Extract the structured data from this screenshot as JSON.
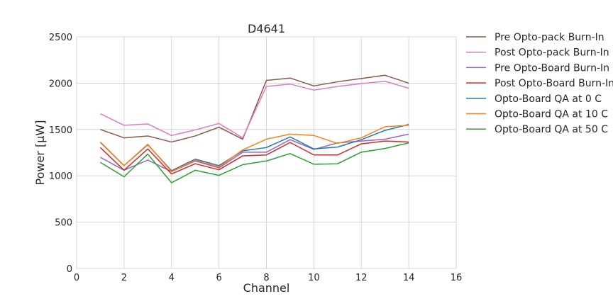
{
  "chart_data": {
    "type": "line",
    "title": "D4641",
    "xlabel": "Channel",
    "ylabel": "Power [μW]",
    "xlim": [
      0,
      16
    ],
    "ylim": [
      0,
      2500
    ],
    "xticks": [
      0,
      2,
      4,
      6,
      8,
      10,
      12,
      14,
      16
    ],
    "yticks": [
      0,
      500,
      1000,
      1500,
      2000,
      2500
    ],
    "grid": true,
    "legend_position": "right, outside plot",
    "x": [
      1,
      2,
      3,
      4,
      5,
      6,
      7,
      8,
      9,
      10,
      11,
      12,
      13,
      14
    ],
    "series": [
      {
        "name": "Pre Opto-pack Burn-In",
        "color": "#8c564b",
        "values": [
          1500,
          1410,
          1430,
          1365,
          1430,
          1525,
          1395,
          2030,
          2055,
          1970,
          2015,
          2050,
          2085,
          2000
        ]
      },
      {
        "name": "Post Opto-pack Burn-In",
        "color": "#e377c2",
        "values": [
          1670,
          1545,
          1560,
          1435,
          1495,
          1565,
          1410,
          1965,
          1990,
          1925,
          1965,
          1995,
          2020,
          1945
        ]
      },
      {
        "name": "Pre Opto-Board Burn-In",
        "color": "#9467bd",
        "values": [
          1200,
          1060,
          1170,
          1045,
          1160,
          1085,
          1255,
          1255,
          1390,
          1285,
          1355,
          1375,
          1395,
          1450
        ]
      },
      {
        "name": "Post Opto-Board Burn-In",
        "color": "#d62728",
        "values": [
          1305,
          1060,
          1290,
          1020,
          1130,
          1065,
          1215,
          1225,
          1360,
          1225,
          1225,
          1345,
          1375,
          1365
        ]
      },
      {
        "name": "Opto-Board QA at 0 C",
        "color": "#1f77b4",
        "values": [
          1360,
          1110,
          1335,
          1055,
          1180,
          1110,
          1270,
          1305,
          1420,
          1290,
          1310,
          1390,
          1490,
          1555
        ]
      },
      {
        "name": "Opto-Board QA at 10 C",
        "color": "#ff7f0e",
        "values": [
          1365,
          1110,
          1340,
          1045,
          1170,
          1095,
          1280,
          1395,
          1450,
          1435,
          1350,
          1410,
          1530,
          1545
        ]
      },
      {
        "name": "Opto-Board QA at 50 C",
        "color": "#2ca02c",
        "values": [
          1145,
          990,
          1235,
          925,
          1060,
          1005,
          1120,
          1160,
          1240,
          1125,
          1130,
          1255,
          1295,
          1355
        ]
      }
    ]
  }
}
